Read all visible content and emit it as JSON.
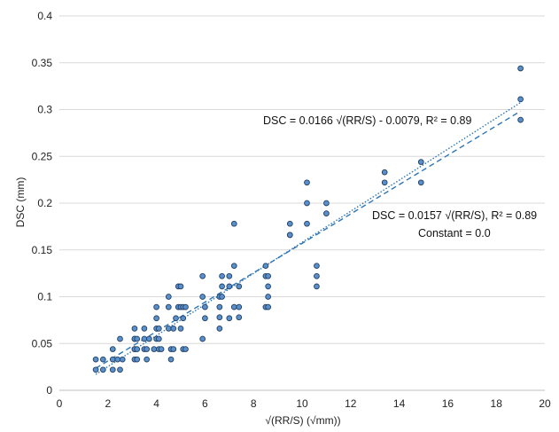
{
  "chart_data": {
    "type": "scatter",
    "title": "",
    "xlabel": "√(RR/S) (√mm))",
    "ylabel": "DSC (mm)",
    "xlim": [
      0,
      20
    ],
    "ylim": [
      0,
      0.4
    ],
    "x_ticks": [
      "0",
      "2",
      "4",
      "6",
      "8",
      "10",
      "12",
      "14",
      "16",
      "18",
      "20"
    ],
    "y_ticks": [
      "0",
      "0.05",
      "0.1",
      "0.15",
      "0.2",
      "0.25",
      "0.3",
      "0.35",
      "0.4"
    ],
    "grid": "horizontal",
    "legend": "none",
    "colors": {
      "marker_fill": "#5b8fc9",
      "marker_stroke": "#1f3f66",
      "trend": "#2e75b6",
      "grid": "#d9d9d9"
    },
    "series": [
      {
        "x": [
          1.5,
          1.5,
          1.8,
          1.8,
          2.2,
          2.2,
          2.2,
          2.4,
          2.5,
          2.5,
          2.6,
          3.1,
          3.1,
          3.1,
          3.1,
          3.1,
          3.1,
          3.2,
          3.2,
          3.2,
          3.5,
          3.5,
          3.5,
          3.6,
          3.6,
          3.7,
          3.9,
          4.0,
          4.0,
          4.0,
          4.0,
          4.1,
          4.1,
          4.1,
          4.2,
          4.5,
          4.5,
          4.5,
          4.6,
          4.6,
          4.7,
          4.7,
          4.8,
          4.9,
          4.9,
          5.0,
          5.0,
          5.0,
          5.1,
          5.1,
          5.1,
          5.2,
          5.2,
          5.9,
          5.9,
          5.9,
          6.0,
          6.0,
          6.6,
          6.6,
          6.6,
          6.6,
          6.7,
          6.7,
          6.7,
          7.0,
          7.0,
          7.0,
          7.2,
          7.2,
          7.2,
          7.4,
          7.4,
          7.4,
          8.5,
          8.5,
          8.5,
          8.6,
          8.6,
          8.6,
          8.6,
          9.5,
          9.5,
          9.5,
          10.2,
          10.2,
          10.2,
          10.6,
          10.6,
          10.6,
          11.0,
          11.0,
          13.4,
          13.4,
          14.9,
          14.9,
          19.0,
          19.0,
          19.0
        ],
        "y": [
          0.022,
          0.033,
          0.022,
          0.033,
          0.022,
          0.033,
          0.044,
          0.033,
          0.022,
          0.055,
          0.033,
          0.033,
          0.044,
          0.044,
          0.055,
          0.055,
          0.066,
          0.033,
          0.044,
          0.055,
          0.044,
          0.055,
          0.066,
          0.033,
          0.044,
          0.055,
          0.044,
          0.055,
          0.066,
          0.077,
          0.089,
          0.044,
          0.055,
          0.066,
          0.044,
          0.066,
          0.089,
          0.1,
          0.033,
          0.044,
          0.044,
          0.066,
          0.077,
          0.089,
          0.111,
          0.066,
          0.089,
          0.111,
          0.044,
          0.077,
          0.089,
          0.044,
          0.089,
          0.055,
          0.1,
          0.122,
          0.077,
          0.089,
          0.066,
          0.078,
          0.089,
          0.1,
          0.1,
          0.111,
          0.122,
          0.077,
          0.111,
          0.122,
          0.089,
          0.133,
          0.178,
          0.078,
          0.089,
          0.111,
          0.089,
          0.122,
          0.133,
          0.089,
          0.1,
          0.111,
          0.122,
          0.166,
          0.178,
          0.166,
          0.178,
          0.2,
          0.222,
          0.111,
          0.122,
          0.133,
          0.189,
          0.2,
          0.222,
          0.233,
          0.222,
          0.244,
          0.289,
          0.311,
          0.344
        ]
      }
    ],
    "trendlines": [
      {
        "style": "dotted",
        "slope": 0.0166,
        "intercept": -0.0079,
        "x_range": [
          1.5,
          19.0
        ],
        "label": "DSC = 0.0166 √(RR/S)  - 0.0079, R² = 0.89"
      },
      {
        "style": "dashed",
        "slope": 0.0157,
        "intercept": 0.0,
        "x_range": [
          1.5,
          19.0
        ],
        "label": "DSC = 0.0157 √(RR/S), R² = 0.89",
        "label2": "Constant = 0.0"
      }
    ]
  }
}
